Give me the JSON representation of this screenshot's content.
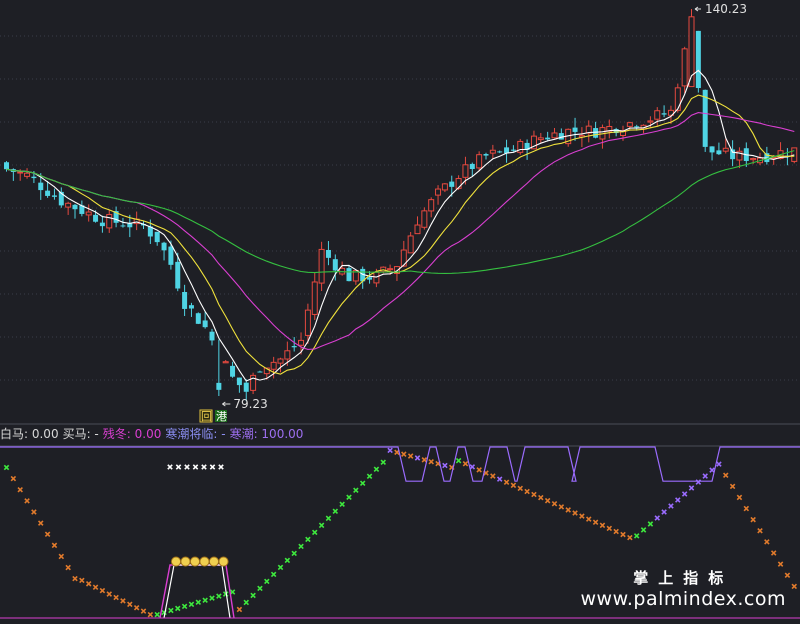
{
  "chart_data": [
    {
      "type": "candlestick",
      "annotations": {
        "high_label": "140.23",
        "low_label": "79.23",
        "tags": [
          "回",
          "港"
        ]
      },
      "colors": {
        "up": "#e5493f",
        "down": "#4fd4e4",
        "ma5": "#ffffff",
        "ma10": "#f0e23c",
        "ma20": "#d93fd1",
        "ma60": "#35c040",
        "grid": "#3a3d49"
      },
      "ylim": [
        79.23,
        140.23
      ]
    },
    {
      "type": "scatter",
      "legend": [
        {
          "text": "白马: 0.00",
          "color": "#d8d8d8"
        },
        {
          "text": "买马: -",
          "color": "#d8d8d8"
        },
        {
          "text": "残冬: 0.00",
          "color": "#d93fd1"
        },
        {
          "text": "寒潮将临: -",
          "color": "#8a8df0"
        },
        {
          "text": "寒潮: 100.00",
          "color": "#9d6ff0"
        }
      ],
      "ylim": [
        0,
        100
      ],
      "colors": {
        "rising": "#3ee83e",
        "falling": "#e07a2c",
        "cold": "#9b6cff",
        "warn": "#d93fd1",
        "top": "#ffffff"
      }
    }
  ],
  "watermark": {
    "cn": "掌上指标",
    "url": "www.palmindex.com"
  }
}
